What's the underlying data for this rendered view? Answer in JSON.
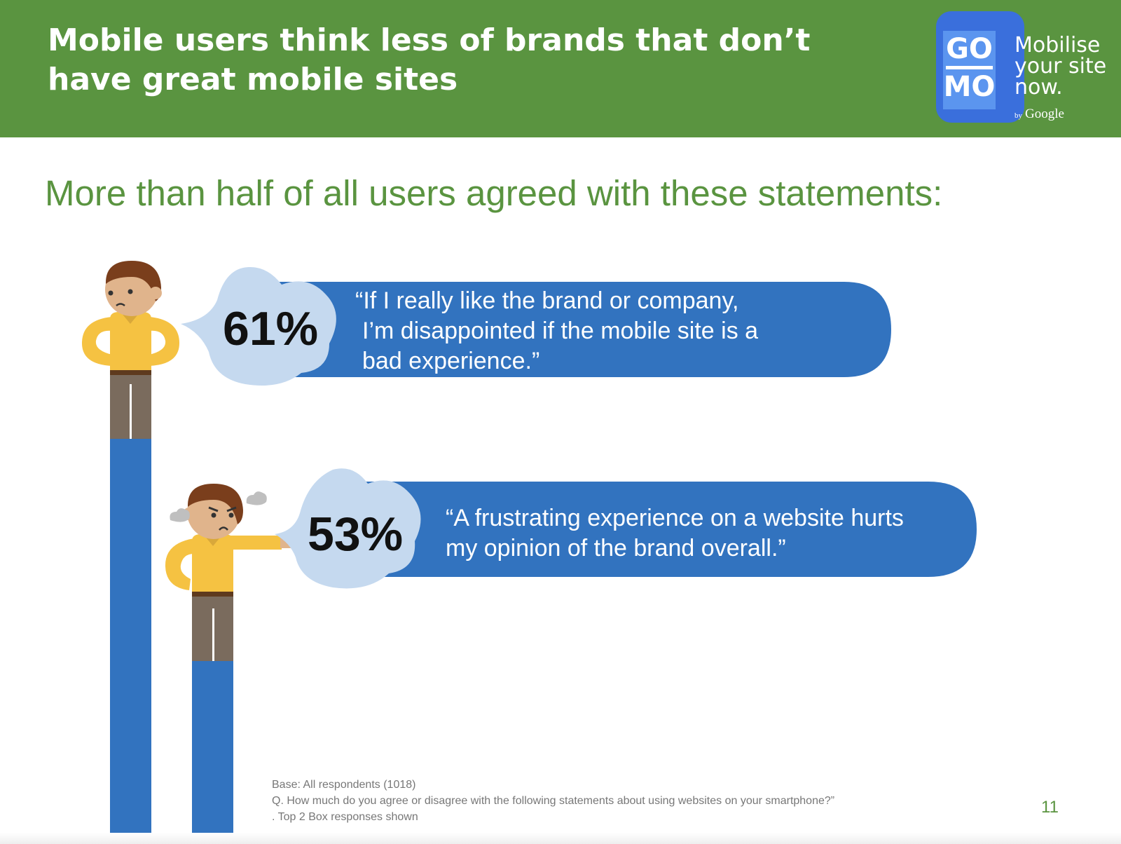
{
  "header": {
    "title_lines": [
      "Mobile users think less of brands that don’t",
      "have great mobile sites"
    ],
    "logo_top": "GO",
    "logo_bottom": "MO",
    "tagline_lines": [
      "Mobilise",
      "your site",
      "now."
    ],
    "by_label": "by",
    "brand": "Google"
  },
  "subtitle": "More than half of all users agreed with these statements:",
  "chart_data": {
    "type": "bar",
    "unit": "%",
    "categories": [
      "“If I really like the brand or company, I’m disappointed if the mobile site is a bad experience.”",
      "“A frustrating experience on a website hurts my opinion of the brand overall.”"
    ],
    "values": [
      61,
      53
    ],
    "value_labels": [
      "61%",
      "53%"
    ],
    "quote_lines": [
      [
        "“If I really like the brand or company,",
        "I’m disappointed if the mobile site is a",
        "bad experience.”"
      ],
      [
        "“A frustrating experience on a website hurts",
        "my opinion of the brand overall.”"
      ]
    ]
  },
  "footnote": {
    "base": "Base: All respondents (1018)",
    "question": "Q. How much do you agree or disagree with the following statements about using websites on your smartphone?”",
    "note": ". Top 2 Box responses shown"
  },
  "page_number": "11",
  "colors": {
    "header_green": "#5a9440",
    "bar_blue": "#3273bf",
    "bubble_light": "#c5d9ef",
    "shirt_yellow": "#f5c242",
    "pants_gray": "#7a6b5d"
  }
}
